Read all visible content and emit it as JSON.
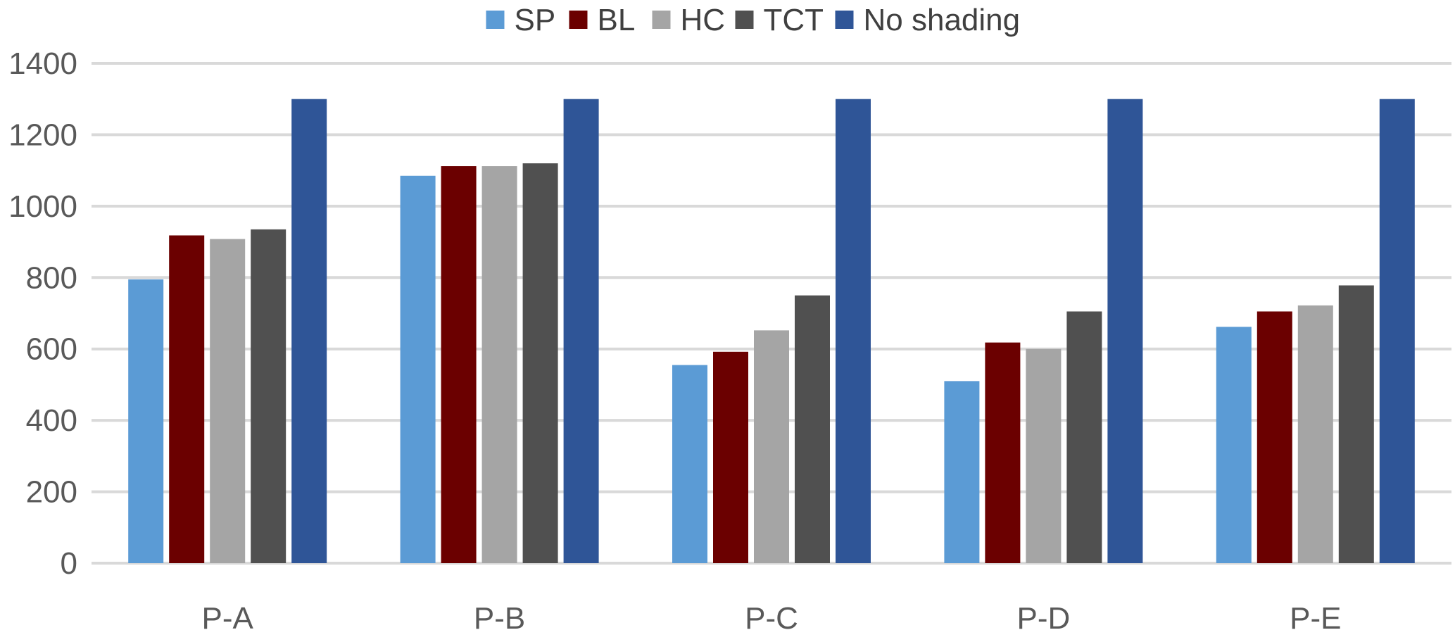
{
  "chart_data": {
    "type": "bar",
    "title": "",
    "xlabel": "",
    "ylabel": "",
    "categories": [
      "P-A",
      "P-B",
      "P-C",
      "P-D",
      "P-E"
    ],
    "ylim": [
      0,
      1400
    ],
    "yticks": [
      0,
      200,
      400,
      600,
      800,
      1000,
      1200,
      1400
    ],
    "ytick_labels": [
      "0",
      "200",
      "400",
      "600",
      "800",
      "1000",
      "1200",
      "1400"
    ],
    "grid": true,
    "legend_position": "top-center",
    "series": [
      {
        "name": "SP",
        "color": "#5b9bd5",
        "values": [
          795,
          1085,
          555,
          510,
          662
        ]
      },
      {
        "name": "BL",
        "color": "#6b0000",
        "values": [
          918,
          1112,
          592,
          618,
          705
        ]
      },
      {
        "name": "HC",
        "color": "#a5a5a5",
        "values": [
          908,
          1112,
          652,
          600,
          722
        ]
      },
      {
        "name": "TCT",
        "color": "#505050",
        "values": [
          935,
          1120,
          750,
          705,
          778
        ]
      },
      {
        "name": "No shading",
        "color": "#2f5597",
        "values": [
          1300,
          1300,
          1300,
          1300,
          1300
        ]
      }
    ]
  }
}
